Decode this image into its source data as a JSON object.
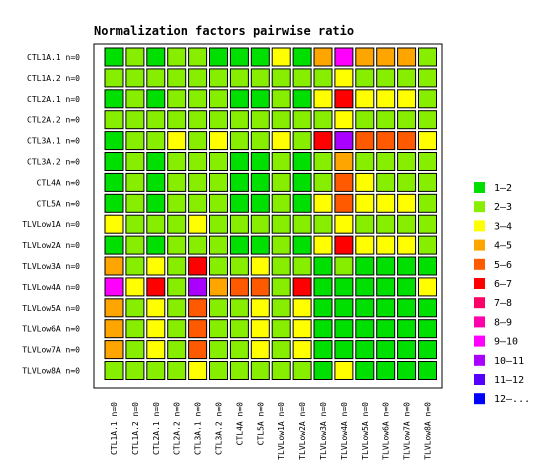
{
  "chart_data": {
    "type": "heatmap",
    "title": "Normalization factors pairwise ratio",
    "xlabel": "",
    "ylabel": "",
    "rows": [
      "CTL1A.1 n=0",
      "CTL1A.2 n=0",
      "CTL2A.1 n=0",
      "CTL2A.2 n=0",
      "CTL3A.1 n=0",
      "CTL3A.2 n=0",
      "CTL4A n=0",
      "CTL5A n=0",
      "TLVLow1A n=0",
      "TLVLow2A n=0",
      "TLVLow3A n=0",
      "TLVLow4A n=0",
      "TLVLow5A n=0",
      "TLVLow6A n=0",
      "TLVLow7A n=0",
      "TLVLow8A n=0"
    ],
    "columns": [
      "CTL1A.1 n=0",
      "CTL1A.2 n=0",
      "CTL2A.1 n=0",
      "CTL2A.2 n=0",
      "CTL3A.1 n=0",
      "CTL3A.2 n=0",
      "CTL4A n=0",
      "CTL5A n=0",
      "TLVLow1A n=0",
      "TLVLow2A n=0",
      "TLVLow3A n=0",
      "TLVLow4A n=0",
      "TLVLow5A n=0",
      "TLVLow6A n=0",
      "TLVLow7A n=0",
      "TLVLow8A n=0"
    ],
    "legend": [
      {
        "label": "1–2",
        "color": "#00e000"
      },
      {
        "label": "2–3",
        "color": "#88ee00"
      },
      {
        "label": "3–4",
        "color": "#ffff00"
      },
      {
        "label": "4–5",
        "color": "#ffa500"
      },
      {
        "label": "5–6",
        "color": "#ff5a00"
      },
      {
        "label": "6–7",
        "color": "#ff0000"
      },
      {
        "label": "7–8",
        "color": "#ff0066"
      },
      {
        "label": "8–9",
        "color": "#ff00aa"
      },
      {
        "label": "9–10",
        "color": "#ff00ff"
      },
      {
        "label": "10–11",
        "color": "#aa00ff"
      },
      {
        "label": "11–12",
        "color": "#5500ff"
      },
      {
        "label": "12–...",
        "color": "#0000ff"
      }
    ],
    "legend_position": "right",
    "values": [
      [
        0,
        1,
        0,
        1,
        1,
        0,
        0,
        0,
        2,
        0,
        3,
        8,
        3,
        3,
        3,
        1
      ],
      [
        1,
        1,
        1,
        1,
        1,
        1,
        1,
        1,
        1,
        1,
        1,
        2,
        1,
        1,
        1,
        1
      ],
      [
        0,
        1,
        0,
        1,
        1,
        1,
        0,
        0,
        1,
        0,
        2,
        5,
        2,
        2,
        2,
        1
      ],
      [
        1,
        1,
        1,
        1,
        1,
        1,
        1,
        1,
        1,
        1,
        1,
        2,
        1,
        1,
        1,
        1
      ],
      [
        0,
        1,
        1,
        2,
        1,
        2,
        1,
        1,
        2,
        1,
        5,
        9,
        4,
        4,
        4,
        2
      ],
      [
        0,
        1,
        0,
        1,
        1,
        1,
        0,
        0,
        1,
        0,
        1,
        3,
        1,
        1,
        1,
        1
      ],
      [
        0,
        1,
        0,
        1,
        1,
        1,
        0,
        0,
        1,
        0,
        1,
        4,
        2,
        1,
        1,
        1
      ],
      [
        0,
        1,
        0,
        1,
        1,
        1,
        0,
        0,
        1,
        0,
        2,
        4,
        2,
        2,
        2,
        1
      ],
      [
        2,
        1,
        1,
        1,
        2,
        1,
        1,
        1,
        1,
        1,
        1,
        2,
        1,
        1,
        1,
        1
      ],
      [
        0,
        1,
        0,
        1,
        1,
        1,
        0,
        0,
        1,
        0,
        2,
        5,
        2,
        2,
        2,
        1
      ],
      [
        3,
        1,
        2,
        1,
        5,
        1,
        1,
        2,
        1,
        1,
        0,
        1,
        0,
        0,
        0,
        0
      ],
      [
        8,
        2,
        5,
        1,
        9,
        3,
        4,
        4,
        1,
        5,
        0,
        0,
        0,
        0,
        0,
        2
      ],
      [
        3,
        1,
        2,
        1,
        4,
        1,
        1,
        2,
        1,
        2,
        0,
        0,
        0,
        0,
        0,
        0
      ],
      [
        3,
        1,
        2,
        1,
        4,
        1,
        1,
        2,
        1,
        2,
        0,
        0,
        0,
        0,
        0,
        0
      ],
      [
        3,
        1,
        2,
        1,
        4,
        1,
        1,
        2,
        1,
        2,
        0,
        0,
        0,
        0,
        0,
        0
      ],
      [
        1,
        1,
        1,
        1,
        2,
        1,
        1,
        1,
        1,
        1,
        0,
        2,
        0,
        0,
        0,
        0
      ]
    ]
  }
}
